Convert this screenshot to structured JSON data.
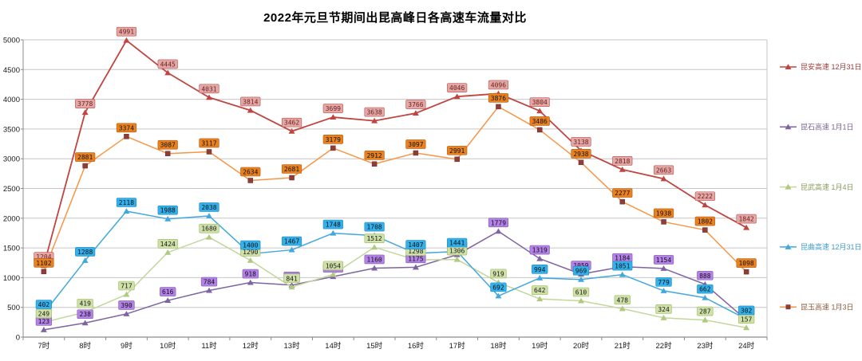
{
  "title": "2022年元旦节期间出昆高峰日各高速车流量对比",
  "chart_data": {
    "type": "line",
    "categories": [
      "7时",
      "8时",
      "9时",
      "10时",
      "11时",
      "12时",
      "13时",
      "14时",
      "15时",
      "16时",
      "17时",
      "18时",
      "19时",
      "20时",
      "21时",
      "22时",
      "23时",
      "24时"
    ],
    "ylim": [
      0,
      5000
    ],
    "yticks": [
      0,
      500,
      1000,
      1500,
      2000,
      2500,
      3000,
      3500,
      4000,
      4500,
      5000
    ],
    "grid": true,
    "legend_position": "right",
    "series": [
      {
        "name": "昆安高速 12月31日",
        "color": "#C0443F",
        "marker": "triangle",
        "marker_color": "#C0443F",
        "label_bg": "#E2A8A6",
        "label_border": "#C0504D",
        "label_text": "#6D1F1F",
        "legend_color": "#9C3A38",
        "values": [
          1204,
          3778,
          4991,
          4445,
          4031,
          3814,
          3462,
          3699,
          3638,
          3766,
          4046,
          4096,
          3804,
          3138,
          2818,
          2663,
          2222,
          1842
        ]
      },
      {
        "name": "昆石高速 1月1日",
        "color": "#8064A2",
        "marker": "triangle",
        "marker_color": "#8064A2",
        "label_bg": "#B481E8",
        "label_border": "#7D5FA8",
        "label_text": "#111111",
        "legend_color": "#776393",
        "values": [
          123,
          238,
          390,
          616,
          784,
          918,
          874,
          1017,
          1160,
          1175,
          1385,
          1779,
          1319,
          1059,
          1184,
          1154,
          888,
          289
        ]
      },
      {
        "name": "昆武高速 1月4日",
        "color": "#C3D69B",
        "marker": "triangle",
        "marker_color": "#AFC97E",
        "label_bg": "#CFE0A8",
        "label_border": "#9BBB59",
        "label_text": "#1A1A1A",
        "legend_color": "#8A9B5C",
        "values": [
          249,
          419,
          717,
          1424,
          1680,
          1290,
          841,
          1054,
          1512,
          1298,
          1306,
          919,
          642,
          610,
          478,
          324,
          287,
          157
        ]
      },
      {
        "name": "昆曲高速 12月31日",
        "color": "#41A8DE",
        "marker": "triangle",
        "marker_color": "#41A8DE",
        "label_bg": "#33B1EC",
        "label_border": "#2488BC",
        "label_text": "#111111",
        "legend_color": "#3D9BCF",
        "values": [
          402,
          1288,
          2118,
          1988,
          2038,
          1400,
          1467,
          1748,
          1708,
          1407,
          1441,
          692,
          994,
          969,
          1051,
          779,
          662,
          302
        ]
      },
      {
        "name": "昆玉高速 1月3日",
        "color": "#F79646",
        "marker": "square",
        "marker_color": "#8E3D38",
        "label_bg": "#E9821E",
        "label_border": "#B55A11",
        "label_text": "#111111",
        "legend_color": "#8C5A3B",
        "values": [
          1102,
          2881,
          3374,
          3087,
          3117,
          2634,
          2681,
          3179,
          2912,
          3097,
          2991,
          3876,
          3486,
          2938,
          2277,
          1938,
          1802,
          1098
        ]
      }
    ]
  }
}
